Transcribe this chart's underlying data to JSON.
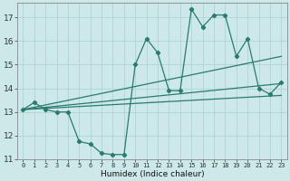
{
  "xlabel": "Humidex (Indice chaleur)",
  "background_color": "#cce8e8",
  "grid_color": "#b0d8d8",
  "line_color": "#2a7a6f",
  "xmin": -0.5,
  "xmax": 23.5,
  "ymin": 11,
  "ymax": 17.6,
  "yticks": [
    11,
    12,
    13,
    14,
    15,
    16,
    17
  ],
  "xticks": [
    0,
    1,
    2,
    3,
    4,
    5,
    6,
    7,
    8,
    9,
    10,
    11,
    12,
    13,
    14,
    15,
    16,
    17,
    18,
    19,
    20,
    21,
    22,
    23
  ],
  "line1_x": [
    0,
    1,
    2,
    3,
    4,
    5,
    6,
    7,
    8,
    9,
    10,
    11,
    12,
    13,
    14,
    15,
    16,
    17,
    18,
    19,
    20,
    21,
    22,
    23
  ],
  "line1_y": [
    13.1,
    13.4,
    13.1,
    13.0,
    13.0,
    11.75,
    11.65,
    11.25,
    11.2,
    11.2,
    15.0,
    16.1,
    15.5,
    13.9,
    13.9,
    17.35,
    16.6,
    17.1,
    17.1,
    15.35,
    16.1,
    14.0,
    13.75,
    14.25
  ],
  "line2_x": [
    0,
    23
  ],
  "line2_y": [
    13.1,
    15.35
  ],
  "line3_x": [
    0,
    23
  ],
  "line3_y": [
    13.1,
    14.2
  ],
  "line4_x": [
    0,
    23
  ],
  "line4_y": [
    13.1,
    13.7
  ]
}
